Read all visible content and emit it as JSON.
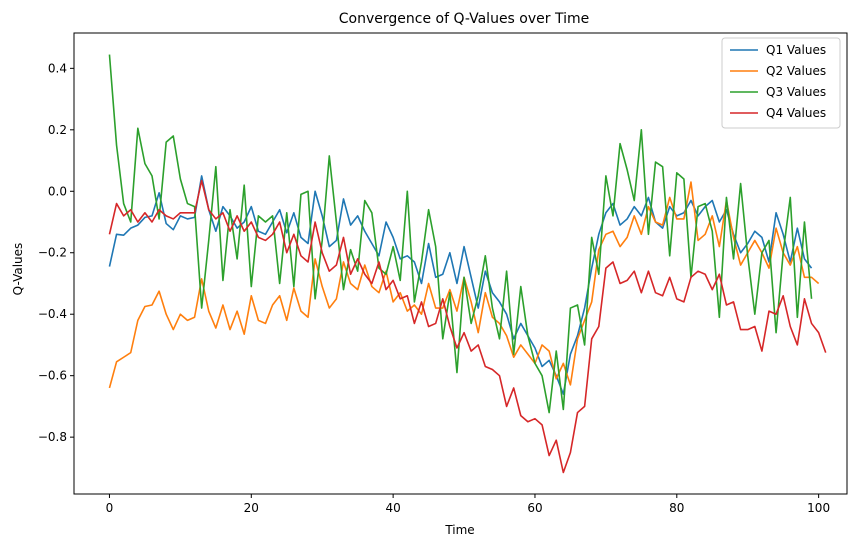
{
  "chart_data": {
    "type": "line",
    "title": "Convergence of Q-Values over Time",
    "xlabel": "Time",
    "ylabel": "Q-Values",
    "xlim": [
      -5,
      104
    ],
    "ylim": [
      -0.985,
      0.515
    ],
    "xticks": [
      0,
      20,
      40,
      60,
      80,
      100
    ],
    "xtick_labels": [
      "0",
      "20",
      "40",
      "60",
      "80",
      "100"
    ],
    "yticks": [
      0.4,
      0.2,
      0.0,
      -0.2,
      -0.4,
      -0.6,
      -0.8
    ],
    "ytick_labels": [
      "0.4",
      "0.2",
      "0.0",
      "−0.2",
      "−0.4",
      "−0.6",
      "−0.8"
    ],
    "grid": false,
    "legend_position": "top-right",
    "x_start": 0,
    "x_step": 1,
    "series": [
      {
        "name": "Q1 Values",
        "color": "#1f77b4",
        "values": [
          -0.245,
          -0.14,
          -0.143,
          -0.12,
          -0.11,
          -0.085,
          -0.08,
          -0.005,
          -0.105,
          -0.125,
          -0.08,
          -0.09,
          -0.085,
          0.05,
          -0.06,
          -0.13,
          -0.05,
          -0.08,
          -0.12,
          -0.1,
          -0.05,
          -0.13,
          -0.14,
          -0.1,
          -0.06,
          -0.135,
          -0.07,
          -0.15,
          -0.17,
          0.0,
          -0.08,
          -0.18,
          -0.16,
          -0.025,
          -0.11,
          -0.08,
          -0.13,
          -0.17,
          -0.21,
          -0.1,
          -0.15,
          -0.22,
          -0.21,
          -0.23,
          -0.3,
          -0.17,
          -0.28,
          -0.27,
          -0.2,
          -0.3,
          -0.18,
          -0.28,
          -0.38,
          -0.26,
          -0.33,
          -0.36,
          -0.4,
          -0.48,
          -0.43,
          -0.47,
          -0.51,
          -0.57,
          -0.55,
          -0.6,
          -0.66,
          -0.53,
          -0.47,
          -0.38,
          -0.25,
          -0.14,
          -0.07,
          -0.04,
          -0.11,
          -0.09,
          -0.05,
          -0.08,
          -0.02,
          -0.1,
          -0.12,
          -0.05,
          -0.08,
          -0.07,
          -0.03,
          -0.08,
          -0.05,
          -0.03,
          -0.1,
          -0.06,
          -0.14,
          -0.2,
          -0.17,
          -0.13,
          -0.15,
          -0.23,
          -0.07,
          -0.14,
          -0.23,
          -0.12,
          -0.22,
          -0.25
        ]
      },
      {
        "name": "Q2 Values",
        "color": "#ff7f0e",
        "values": [
          -0.64,
          -0.555,
          -0.54,
          -0.525,
          -0.42,
          -0.375,
          -0.37,
          -0.325,
          -0.4,
          -0.45,
          -0.4,
          -0.42,
          -0.41,
          -0.285,
          -0.39,
          -0.445,
          -0.37,
          -0.45,
          -0.39,
          -0.465,
          -0.34,
          -0.42,
          -0.43,
          -0.37,
          -0.34,
          -0.42,
          -0.315,
          -0.39,
          -0.41,
          -0.22,
          -0.31,
          -0.38,
          -0.35,
          -0.23,
          -0.3,
          -0.32,
          -0.24,
          -0.31,
          -0.33,
          -0.26,
          -0.36,
          -0.33,
          -0.39,
          -0.37,
          -0.4,
          -0.3,
          -0.38,
          -0.38,
          -0.32,
          -0.39,
          -0.28,
          -0.36,
          -0.46,
          -0.33,
          -0.41,
          -0.43,
          -0.47,
          -0.54,
          -0.5,
          -0.53,
          -0.56,
          -0.5,
          -0.52,
          -0.61,
          -0.56,
          -0.63,
          -0.48,
          -0.42,
          -0.36,
          -0.19,
          -0.14,
          -0.13,
          -0.18,
          -0.15,
          -0.08,
          -0.14,
          -0.05,
          -0.1,
          -0.11,
          -0.02,
          -0.09,
          -0.09,
          0.03,
          -0.16,
          -0.14,
          -0.08,
          -0.18,
          -0.03,
          -0.15,
          -0.24,
          -0.2,
          -0.16,
          -0.2,
          -0.25,
          -0.12,
          -0.2,
          -0.24,
          -0.18,
          -0.28,
          -0.28,
          -0.3
        ]
      },
      {
        "name": "Q3 Values",
        "color": "#2ca02c",
        "values": [
          0.445,
          0.15,
          -0.04,
          -0.1,
          0.205,
          0.09,
          0.05,
          -0.09,
          0.16,
          0.18,
          0.04,
          -0.04,
          -0.05,
          -0.38,
          -0.16,
          0.08,
          -0.29,
          -0.06,
          -0.22,
          0.02,
          -0.31,
          -0.08,
          -0.1,
          -0.08,
          -0.3,
          -0.07,
          -0.31,
          -0.01,
          0.0,
          -0.35,
          -0.16,
          0.115,
          -0.1,
          -0.32,
          -0.19,
          -0.26,
          -0.03,
          -0.07,
          -0.25,
          -0.27,
          -0.18,
          -0.29,
          0.0,
          -0.36,
          -0.23,
          -0.06,
          -0.18,
          -0.48,
          -0.33,
          -0.59,
          -0.28,
          -0.43,
          -0.34,
          -0.21,
          -0.38,
          -0.48,
          -0.26,
          -0.53,
          -0.31,
          -0.47,
          -0.56,
          -0.6,
          -0.72,
          -0.52,
          -0.71,
          -0.38,
          -0.37,
          -0.5,
          -0.15,
          -0.27,
          0.05,
          -0.08,
          0.155,
          0.07,
          -0.03,
          0.2,
          -0.14,
          0.095,
          0.08,
          -0.21,
          0.06,
          0.04,
          -0.28,
          -0.05,
          -0.04,
          -0.13,
          -0.41,
          -0.02,
          -0.22,
          0.025,
          -0.21,
          -0.4,
          -0.2,
          -0.16,
          -0.46,
          -0.2,
          -0.02,
          -0.41,
          -0.1,
          -0.35
        ]
      },
      {
        "name": "Q4 Values",
        "color": "#d62728",
        "values": [
          -0.14,
          -0.04,
          -0.08,
          -0.06,
          -0.1,
          -0.07,
          -0.1,
          -0.06,
          -0.08,
          -0.09,
          -0.07,
          -0.07,
          -0.07,
          0.035,
          -0.06,
          -0.09,
          -0.07,
          -0.13,
          -0.08,
          -0.13,
          -0.1,
          -0.15,
          -0.16,
          -0.14,
          -0.1,
          -0.2,
          -0.14,
          -0.21,
          -0.23,
          -0.1,
          -0.2,
          -0.26,
          -0.24,
          -0.15,
          -0.27,
          -0.22,
          -0.27,
          -0.3,
          -0.23,
          -0.32,
          -0.29,
          -0.35,
          -0.34,
          -0.43,
          -0.36,
          -0.44,
          -0.43,
          -0.35,
          -0.44,
          -0.51,
          -0.46,
          -0.52,
          -0.5,
          -0.57,
          -0.58,
          -0.6,
          -0.7,
          -0.64,
          -0.73,
          -0.75,
          -0.74,
          -0.76,
          -0.86,
          -0.81,
          -0.915,
          -0.85,
          -0.72,
          -0.7,
          -0.48,
          -0.44,
          -0.25,
          -0.23,
          -0.3,
          -0.29,
          -0.26,
          -0.33,
          -0.26,
          -0.33,
          -0.34,
          -0.28,
          -0.35,
          -0.36,
          -0.28,
          -0.26,
          -0.27,
          -0.32,
          -0.27,
          -0.37,
          -0.36,
          -0.45,
          -0.45,
          -0.44,
          -0.52,
          -0.39,
          -0.4,
          -0.34,
          -0.44,
          -0.5,
          -0.35,
          -0.43,
          -0.46,
          -0.525
        ]
      }
    ]
  }
}
